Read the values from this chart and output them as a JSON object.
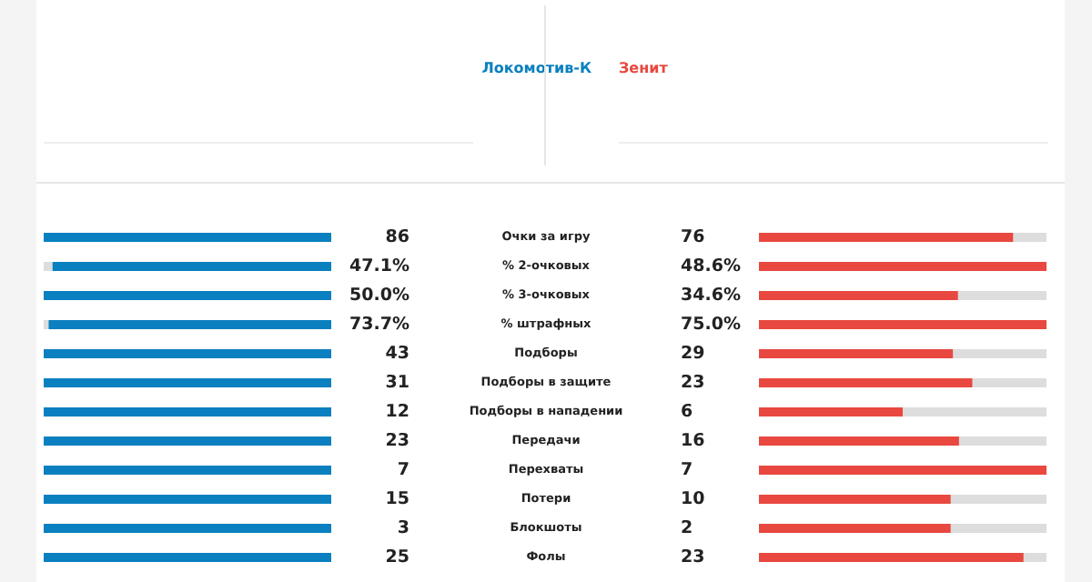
{
  "chart_data": {
    "type": "other",
    "categories": [
      "Очки за игру",
      "% 2-очковых",
      "% 3-очковых",
      "% штрафных",
      "Подборы",
      "Подборы в защите",
      "Подборы в нападении",
      "Передачи",
      "Перехваты",
      "Потери",
      "Блокшоты",
      "Фолы"
    ],
    "series": [
      {
        "name": "Локомотив-К",
        "color": "#0a80c0",
        "values": [
          86,
          47.1,
          50.0,
          73.7,
          43,
          31,
          12,
          23,
          7,
          15,
          3,
          25
        ],
        "value_labels": [
          "86",
          "47.1%",
          "50.0%",
          "73.7%",
          "43",
          "31",
          "12",
          "23",
          "7",
          "15",
          "3",
          "25"
        ]
      },
      {
        "name": "Зенит",
        "color": "#e8483f",
        "values": [
          76,
          48.6,
          34.6,
          75.0,
          29,
          23,
          6,
          16,
          7,
          10,
          2,
          23
        ],
        "value_labels": [
          "76",
          "48.6%",
          "34.6%",
          "75.0%",
          "29",
          "23",
          "6",
          "16",
          "7",
          "10",
          "2",
          "23"
        ]
      }
    ]
  }
}
